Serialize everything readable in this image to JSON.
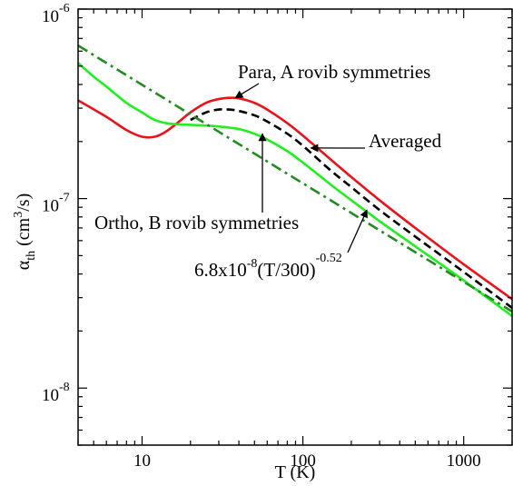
{
  "chart_data": {
    "type": "line",
    "xlabel": "T (K)",
    "ylabel": {
      "main": "α",
      "sub": "th",
      "unit_open": " (cm",
      "unit_sup": "3",
      "unit_close": "/s)"
    },
    "x_scale": "log",
    "y_scale": "log",
    "xlim": [
      4,
      2000
    ],
    "ylim": [
      5e-09,
      1e-06
    ],
    "grid": false,
    "x_ticks": [
      {
        "value": 10,
        "label": "10"
      },
      {
        "value": 100,
        "label": "100"
      },
      {
        "value": 1000,
        "label": "1000"
      }
    ],
    "y_ticks": [
      {
        "value": 1e-08,
        "base": "10",
        "exp": "-8"
      },
      {
        "value": 1e-07,
        "base": "10",
        "exp": "-7"
      },
      {
        "value": 1e-06,
        "base": "10",
        "exp": "-6"
      }
    ],
    "series": [
      {
        "key": "para",
        "color": "#e8141c",
        "dash": "solid",
        "x": [
          4,
          6,
          8,
          10,
          12,
          14,
          17,
          20,
          25,
          30,
          35,
          40,
          50,
          60,
          80,
          100,
          150,
          200,
          300,
          500,
          1000,
          2000
        ],
        "y": [
          3.3e-07,
          2.7e-07,
          2.3e-07,
          2.12e-07,
          2.12e-07,
          2.25e-07,
          2.55e-07,
          2.85e-07,
          3.2e-07,
          3.35e-07,
          3.4e-07,
          3.38e-07,
          3.2e-07,
          2.95e-07,
          2.5e-07,
          2.15e-07,
          1.6e-07,
          1.3e-07,
          9.8e-08,
          7e-08,
          4.5e-08,
          2.95e-08
        ]
      },
      {
        "key": "ortho",
        "color": "#22ee22",
        "dash": "solid",
        "x": [
          4,
          5,
          6,
          8,
          10,
          12,
          15,
          20,
          25,
          30,
          40,
          50,
          60,
          80,
          100,
          150,
          200,
          300,
          500,
          1000,
          2000
        ],
        "y": [
          5.2e-07,
          4.4e-07,
          3.9e-07,
          3.2e-07,
          2.85e-07,
          2.6e-07,
          2.48e-07,
          2.45e-07,
          2.43e-07,
          2.4e-07,
          2.33e-07,
          2.2e-07,
          2.05e-07,
          1.78e-07,
          1.55e-07,
          1.18e-07,
          9.8e-08,
          7.6e-08,
          5.6e-08,
          3.7e-08,
          2.4e-08
        ]
      },
      {
        "key": "averaged",
        "color": "#000000",
        "dash": "dashed",
        "x": [
          20,
          25,
          30,
          35,
          40,
          50,
          60,
          80,
          100,
          150,
          200,
          300,
          500,
          1000,
          2000
        ],
        "y": [
          2.6e-07,
          2.85e-07,
          2.95e-07,
          2.95e-07,
          2.9e-07,
          2.75e-07,
          2.55e-07,
          2.2e-07,
          1.9e-07,
          1.4e-07,
          1.15e-07,
          8.7e-08,
          6.3e-08,
          4.1e-08,
          2.65e-08
        ]
      },
      {
        "key": "fit",
        "color": "#228b22",
        "dash": "dashdot",
        "formula": {
          "a": 6.8e-08,
          "t0": 300,
          "p": -0.52
        },
        "x": [
          4,
          2000
        ]
      }
    ],
    "annotations": [
      {
        "key": "para",
        "text": "Para, A rovib symmetries",
        "point": [
          38,
          3.4e-07
        ]
      },
      {
        "key": "averaged",
        "text": "Averaged",
        "point": [
          112,
          1.85e-07
        ]
      },
      {
        "key": "ortho",
        "text": "Ortho, B rovib symmetries",
        "point": [
          56,
          2.2e-07
        ]
      },
      {
        "key": "fit",
        "text_base": "6.8x10",
        "text_exp1": "-8",
        "text_mid": "(T/300)",
        "text_exp2": "-0.52",
        "point": [
          250,
          8.7e-08
        ]
      }
    ]
  }
}
